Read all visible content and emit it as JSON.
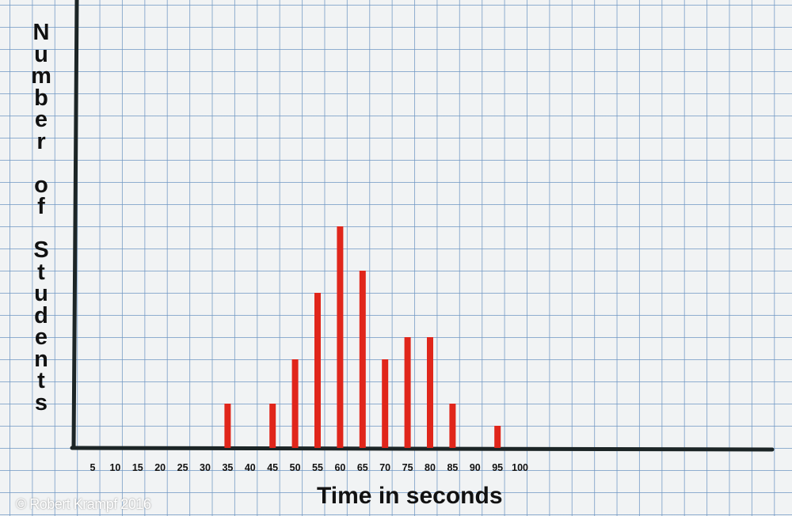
{
  "chart_data": {
    "type": "bar",
    "title": "",
    "xlabel": "Time in seconds",
    "ylabel": "Number of Students",
    "x_ticks": [
      "5",
      "10",
      "15",
      "20",
      "25",
      "30",
      "35",
      "40",
      "45",
      "50",
      "55",
      "60",
      "65",
      "70",
      "75",
      "80",
      "85",
      "90",
      "95",
      "100"
    ],
    "categories": [
      35,
      45,
      50,
      55,
      60,
      65,
      70,
      75,
      80,
      85,
      95
    ],
    "values": [
      2,
      2,
      4,
      7,
      10,
      8,
      4,
      5,
      5,
      2,
      1
    ],
    "xlim": [
      0,
      150
    ],
    "ylim": [
      0,
      20
    ],
    "grid": true,
    "bar_color": "#e0261b",
    "axis_color": "#1c2526"
  },
  "credit": "© Robert Krampf 2016"
}
